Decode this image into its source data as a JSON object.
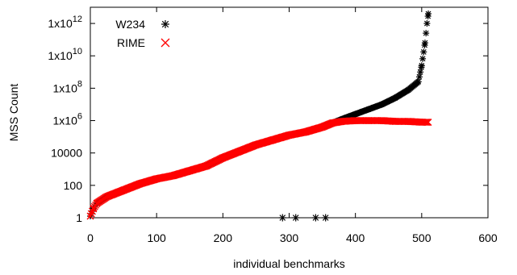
{
  "chart_data": {
    "type": "scatter",
    "xlabel": "individual benchmarks",
    "ylabel": "MSS Count",
    "xlim": [
      0,
      600
    ],
    "ylim_log10": [
      0,
      13
    ],
    "y_scale": "log",
    "grid": false,
    "legend_placement": "top-left",
    "x_ticks": [
      0,
      100,
      200,
      300,
      400,
      500,
      600
    ],
    "x_tick_labels": [
      "0",
      "100",
      "200",
      "300",
      "400",
      "500",
      "600"
    ],
    "y_ticks_log10": [
      0,
      2,
      4,
      6,
      8,
      10,
      12
    ],
    "y_tick_labels": [
      {
        "mantissa": "1",
        "exponent": ""
      },
      {
        "mantissa": "100",
        "exponent": ""
      },
      {
        "mantissa": "10000",
        "exponent": ""
      },
      {
        "mantissa": "1x10",
        "exponent": "6"
      },
      {
        "mantissa": "1x10",
        "exponent": "8"
      },
      {
        "mantissa": "1x10",
        "exponent": "10"
      },
      {
        "mantissa": "1x10",
        "exponent": "12"
      }
    ],
    "series": [
      {
        "name": "W234",
        "marker": "asterisk",
        "color": "#000000",
        "x": [
          0,
          5,
          10,
          25,
          50,
          75,
          100,
          125,
          150,
          175,
          200,
          225,
          250,
          275,
          300,
          325,
          350,
          365,
          380,
          400,
          420,
          440,
          460,
          480,
          495,
          500,
          505,
          508,
          510
        ],
        "log10y": [
          0.1,
          0.6,
          0.9,
          1.3,
          1.7,
          2.1,
          2.4,
          2.6,
          2.9,
          3.2,
          3.7,
          4.1,
          4.5,
          4.8,
          5.1,
          5.3,
          5.6,
          5.85,
          6.1,
          6.4,
          6.7,
          7.0,
          7.4,
          7.9,
          8.4,
          9.4,
          10.8,
          12.0,
          12.6
        ],
        "outliers_x": [
          290,
          310,
          340,
          355
        ],
        "outliers_log10y": [
          0,
          0,
          0,
          0
        ]
      },
      {
        "name": "RIME",
        "marker": "cross",
        "color": "#ff0000",
        "x": [
          0,
          5,
          10,
          25,
          50,
          75,
          100,
          125,
          150,
          175,
          200,
          225,
          250,
          275,
          300,
          325,
          350,
          365,
          380,
          400,
          420,
          440,
          460,
          480,
          500,
          510
        ],
        "log10y": [
          0.1,
          0.6,
          0.9,
          1.3,
          1.7,
          2.1,
          2.4,
          2.6,
          2.9,
          3.2,
          3.7,
          4.1,
          4.5,
          4.8,
          5.1,
          5.3,
          5.6,
          5.85,
          5.95,
          6.0,
          6.0,
          6.0,
          5.95,
          5.95,
          5.9,
          5.9
        ]
      }
    ]
  }
}
